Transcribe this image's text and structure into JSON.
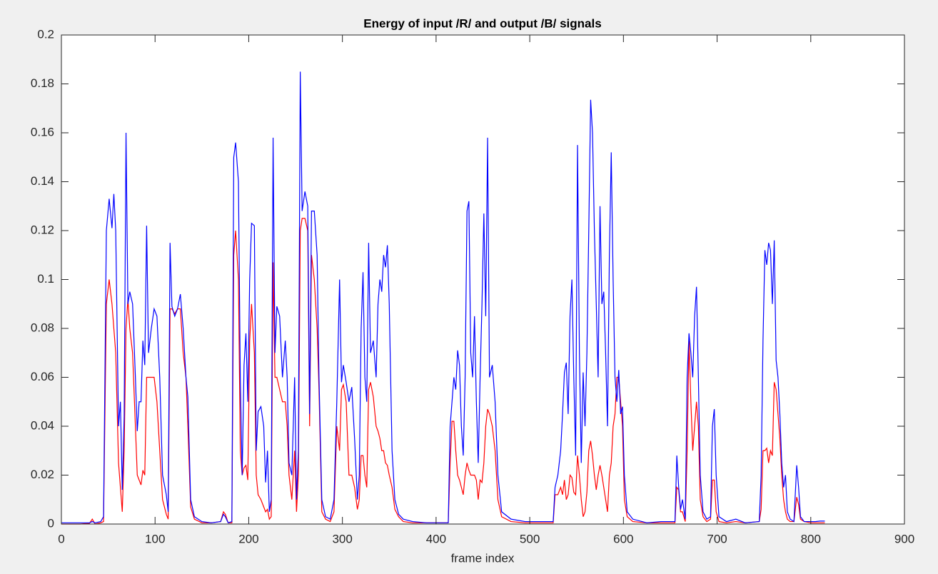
{
  "chart_data": {
    "type": "line",
    "title": "Energy of input /R/ and output /B/ signals",
    "x_label": "frame index",
    "x": [
      0,
      10,
      20,
      30,
      33,
      36,
      42,
      45,
      48,
      51,
      54,
      56,
      58,
      61,
      63,
      65,
      67,
      69,
      71,
      73,
      76,
      79,
      81,
      83,
      85,
      87,
      89,
      91,
      93,
      96,
      99,
      102,
      105,
      108,
      112,
      114,
      116,
      118,
      121,
      124,
      127,
      130,
      133,
      135,
      138,
      142,
      150,
      160,
      170,
      173,
      175,
      178,
      182,
      184,
      186,
      189,
      191,
      193,
      195,
      197,
      199,
      201,
      203,
      206,
      208,
      210,
      213,
      216,
      218,
      220,
      222,
      224,
      226,
      228,
      230,
      233,
      236,
      239,
      241,
      243,
      246,
      249,
      251,
      253,
      255,
      257,
      260,
      263,
      265,
      267,
      270,
      273,
      275,
      278,
      282,
      287,
      291,
      294,
      297,
      299,
      301,
      304,
      307,
      310,
      313,
      316,
      318,
      320,
      322,
      324,
      326,
      328,
      330,
      333,
      336,
      338,
      340,
      342,
      344,
      346,
      348,
      350,
      353,
      356,
      360,
      365,
      375,
      390,
      405,
      413,
      415,
      417,
      419,
      421,
      423,
      425,
      427,
      429,
      431,
      433,
      435,
      437,
      439,
      441,
      443,
      445,
      447,
      449,
      451,
      453,
      455,
      457,
      460,
      463,
      466,
      470,
      480,
      495,
      510,
      525,
      527,
      530,
      533,
      535,
      537,
      539,
      541,
      543,
      545,
      547,
      549,
      551,
      553,
      555,
      557,
      559,
      561,
      563,
      565,
      567,
      569,
      571,
      573,
      575,
      577,
      579,
      581,
      583,
      585,
      587,
      589,
      591,
      593,
      595,
      597,
      599,
      601,
      604,
      610,
      625,
      640,
      655,
      657,
      659,
      661,
      663,
      666,
      668,
      670,
      672,
      674,
      676,
      678,
      680,
      682,
      685,
      689,
      693,
      695,
      697,
      699,
      702,
      710,
      720,
      730,
      745,
      747,
      749,
      751,
      753,
      755,
      757,
      759,
      761,
      763,
      765,
      767,
      769,
      771,
      773,
      775,
      778,
      782,
      785,
      787,
      789,
      793,
      800,
      805,
      810,
      815
    ],
    "series": [
      {
        "color": "#ff0000",
        "values": [
          0,
          0,
          0,
          0.0003,
          0.002,
          0,
          0.0005,
          0.001,
          0.09,
          0.1,
          0.09,
          0.08,
          0.07,
          0.025,
          0.015,
          0.005,
          0.03,
          0.08,
          0.092,
          0.08,
          0.07,
          0.04,
          0.02,
          0.018,
          0.016,
          0.022,
          0.02,
          0.06,
          0.06,
          0.06,
          0.06,
          0.05,
          0.03,
          0.01,
          0.004,
          0.002,
          0.088,
          0.088,
          0.086,
          0.088,
          0.088,
          0.07,
          0.06,
          0.04,
          0.007,
          0.002,
          0.0005,
          0.0005,
          0.001,
          0.005,
          0.004,
          0.0005,
          0.0005,
          0.11,
          0.12,
          0.1,
          0.03,
          0.02,
          0.023,
          0.024,
          0.018,
          0.075,
          0.09,
          0.07,
          0.02,
          0.012,
          0.01,
          0.007,
          0.005,
          0.006,
          0.002,
          0.003,
          0.107,
          0.06,
          0.06,
          0.055,
          0.05,
          0.05,
          0.04,
          0.02,
          0.01,
          0.03,
          0.005,
          0.02,
          0.12,
          0.125,
          0.125,
          0.12,
          0.04,
          0.11,
          0.1,
          0.08,
          0.055,
          0.005,
          0.002,
          0.001,
          0.005,
          0.04,
          0.03,
          0.055,
          0.057,
          0.05,
          0.02,
          0.02,
          0.015,
          0.006,
          0.01,
          0.028,
          0.028,
          0.02,
          0.015,
          0.055,
          0.058,
          0.052,
          0.04,
          0.038,
          0.035,
          0.03,
          0.03,
          0.025,
          0.024,
          0.02,
          0.015,
          0.006,
          0.003,
          0.001,
          0.0005,
          0.0005,
          0.0005,
          0.0005,
          0.025,
          0.042,
          0.042,
          0.03,
          0.02,
          0.018,
          0.015,
          0.012,
          0.02,
          0.025,
          0.022,
          0.02,
          0.02,
          0.02,
          0.018,
          0.01,
          0.018,
          0.017,
          0.025,
          0.04,
          0.047,
          0.045,
          0.04,
          0.03,
          0.01,
          0.003,
          0.001,
          0.0005,
          0.0005,
          0.0005,
          0.012,
          0.012,
          0.015,
          0.012,
          0.018,
          0.01,
          0.012,
          0.02,
          0.019,
          0.013,
          0.012,
          0.028,
          0.02,
          0.01,
          0.003,
          0.005,
          0.013,
          0.03,
          0.034,
          0.028,
          0.02,
          0.014,
          0.02,
          0.024,
          0.02,
          0.015,
          0.01,
          0.005,
          0.02,
          0.025,
          0.04,
          0.045,
          0.06,
          0.06,
          0.05,
          0.04,
          0.01,
          0.003,
          0.001,
          0.0005,
          0.0005,
          0.0005,
          0.015,
          0.014,
          0.005,
          0.005,
          0.001,
          0.03,
          0.075,
          0.05,
          0.03,
          0.04,
          0.05,
          0.04,
          0.01,
          0.003,
          0.001,
          0.002,
          0.018,
          0.018,
          0.005,
          0.001,
          0.0005,
          0.001,
          0.0005,
          0.001,
          0.006,
          0.03,
          0.03,
          0.031,
          0.025,
          0.03,
          0.028,
          0.058,
          0.055,
          0.045,
          0.035,
          0.02,
          0.01,
          0.005,
          0.002,
          0.001,
          0.001,
          0.011,
          0.008,
          0.002,
          0.001,
          0.0005,
          0.0005,
          0.0005,
          0.0005
        ]
      },
      {
        "color": "#0000ff",
        "values": [
          0.0005,
          0.0005,
          0.0005,
          0.0005,
          0.001,
          0.0005,
          0.001,
          0.003,
          0.12,
          0.133,
          0.121,
          0.135,
          0.12,
          0.04,
          0.05,
          0.014,
          0.044,
          0.16,
          0.09,
          0.095,
          0.09,
          0.06,
          0.038,
          0.05,
          0.05,
          0.075,
          0.065,
          0.122,
          0.07,
          0.08,
          0.088,
          0.085,
          0.06,
          0.02,
          0.012,
          0.005,
          0.115,
          0.089,
          0.085,
          0.088,
          0.094,
          0.08,
          0.06,
          0.052,
          0.01,
          0.003,
          0.001,
          0.0005,
          0.001,
          0.004,
          0.003,
          0.0005,
          0.001,
          0.15,
          0.156,
          0.14,
          0.06,
          0.02,
          0.065,
          0.078,
          0.05,
          0.1,
          0.123,
          0.122,
          0.03,
          0.046,
          0.048,
          0.04,
          0.017,
          0.03,
          0.005,
          0.01,
          0.158,
          0.07,
          0.089,
          0.085,
          0.06,
          0.075,
          0.06,
          0.025,
          0.02,
          0.06,
          0.01,
          0.03,
          0.185,
          0.128,
          0.136,
          0.13,
          0.045,
          0.128,
          0.128,
          0.11,
          0.06,
          0.01,
          0.003,
          0.002,
          0.01,
          0.05,
          0.1,
          0.058,
          0.065,
          0.058,
          0.05,
          0.056,
          0.035,
          0.01,
          0.02,
          0.08,
          0.103,
          0.06,
          0.05,
          0.115,
          0.07,
          0.075,
          0.06,
          0.09,
          0.1,
          0.095,
          0.11,
          0.105,
          0.114,
          0.09,
          0.03,
          0.01,
          0.004,
          0.002,
          0.001,
          0.0005,
          0.0005,
          0.0005,
          0.04,
          0.05,
          0.06,
          0.055,
          0.071,
          0.065,
          0.04,
          0.028,
          0.06,
          0.128,
          0.132,
          0.07,
          0.06,
          0.085,
          0.05,
          0.025,
          0.06,
          0.09,
          0.127,
          0.085,
          0.158,
          0.06,
          0.065,
          0.05,
          0.02,
          0.005,
          0.002,
          0.001,
          0.001,
          0.001,
          0.015,
          0.02,
          0.03,
          0.045,
          0.062,
          0.066,
          0.045,
          0.085,
          0.1,
          0.06,
          0.028,
          0.155,
          0.07,
          0.025,
          0.062,
          0.04,
          0.07,
          0.12,
          0.1735,
          0.16,
          0.12,
          0.09,
          0.06,
          0.13,
          0.09,
          0.095,
          0.07,
          0.04,
          0.11,
          0.152,
          0.1,
          0.06,
          0.05,
          0.063,
          0.045,
          0.048,
          0.02,
          0.005,
          0.002,
          0.0005,
          0.001,
          0.001,
          0.028,
          0.015,
          0.006,
          0.01,
          0.002,
          0.06,
          0.078,
          0.07,
          0.06,
          0.085,
          0.097,
          0.06,
          0.02,
          0.005,
          0.002,
          0.003,
          0.04,
          0.047,
          0.02,
          0.003,
          0.001,
          0.002,
          0.0005,
          0.001,
          0.02,
          0.075,
          0.112,
          0.106,
          0.115,
          0.112,
          0.09,
          0.116,
          0.067,
          0.06,
          0.045,
          0.025,
          0.015,
          0.02,
          0.005,
          0.002,
          0.001,
          0.024,
          0.015,
          0.003,
          0.001,
          0.001,
          0.001,
          0.0012,
          0.0012
        ]
      }
    ],
    "xlim": [
      0,
      900
    ],
    "xticks": [
      0,
      100,
      200,
      300,
      400,
      500,
      600,
      700,
      800,
      900
    ],
    "ylim": [
      0,
      0.2
    ],
    "yticks": [
      0,
      0.02,
      0.04,
      0.06,
      0.08,
      0.1,
      0.12,
      0.14,
      0.16,
      0.18,
      0.2
    ]
  }
}
